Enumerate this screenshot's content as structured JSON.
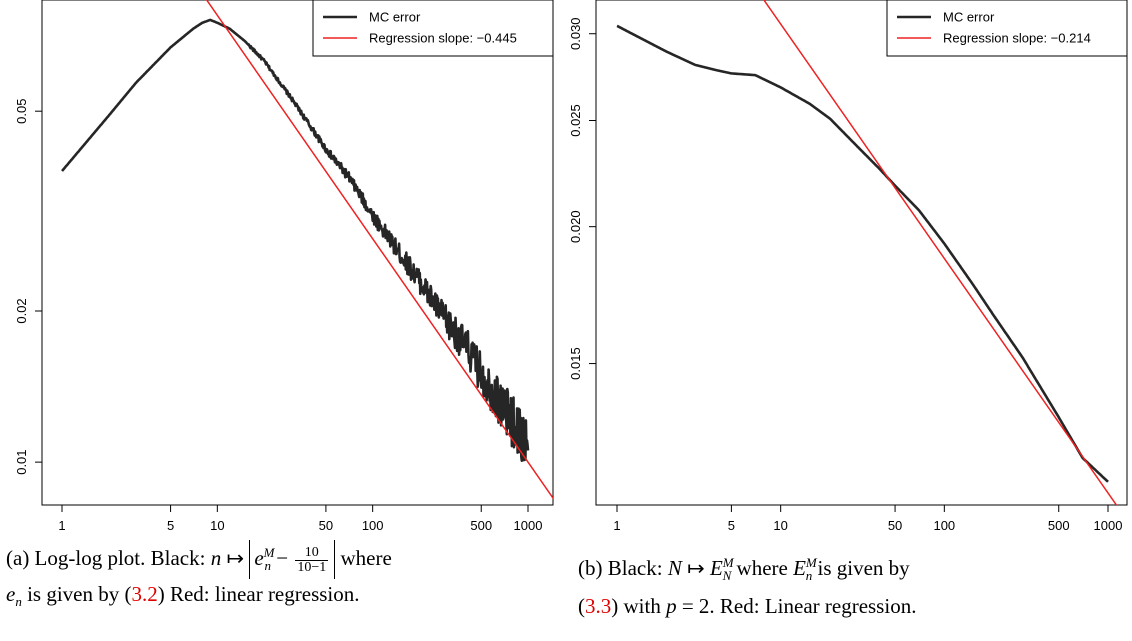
{
  "chart_data": [
    {
      "type": "line",
      "x_scale": "log",
      "y_scale": "log",
      "xlim": [
        1,
        1000
      ],
      "ylim": [
        0.0088,
        0.081
      ],
      "x_ticks": [
        1,
        5,
        10,
        50,
        100,
        500,
        1000
      ],
      "x_tick_labels": [
        "1",
        "5",
        "10",
        "50",
        "100",
        "500",
        "1000"
      ],
      "y_ticks": [
        0.01,
        0.02,
        0.05
      ],
      "y_tick_labels": [
        "0.01",
        "0.02",
        "0.05"
      ],
      "legend_position": "top-right",
      "series": [
        {
          "name": "MC error",
          "color": "#262626",
          "x": [
            1,
            2,
            3,
            5,
            7,
            8,
            9,
            10,
            12,
            15,
            20,
            30,
            50,
            70,
            100,
            150,
            200,
            300,
            400,
            500,
            700,
            1000
          ],
          "y": [
            0.038,
            0.049,
            0.057,
            0.067,
            0.073,
            0.075,
            0.076,
            0.075,
            0.073,
            0.069,
            0.063,
            0.053,
            0.042,
            0.037,
            0.031,
            0.026,
            0.023,
            0.019,
            0.017,
            0.015,
            0.0128,
            0.0108
          ],
          "noise_from_x": 100,
          "noise_amplitude_log10": [
            0.01,
            0.055
          ]
        },
        {
          "name": "Regression slope: −0.445",
          "color": "#ee2222",
          "slope": -0.445,
          "intercept_log10": -0.665
        }
      ],
      "caption": {
        "prefix": "(a) Log-log plot. Black: ",
        "var_n": "n",
        "mapsto": " ↦ ",
        "e_base": "e",
        "e_sup": "M",
        "e_sub": "n",
        "minus": " − ",
        "frac_num": "10",
        "frac_den": "10−1",
        "where": " where",
        "e2_base": "e",
        "e2_sub": "n",
        "middle": " is given by (",
        "ref": "3.2",
        "suffix": ") Red: linear regression."
      }
    },
    {
      "type": "line",
      "x_scale": "log",
      "y_scale": "log",
      "xlim": [
        1,
        1000
      ],
      "ylim": [
        0.0115,
        0.0318
      ],
      "x_ticks": [
        1,
        5,
        10,
        50,
        100,
        500,
        1000
      ],
      "x_tick_labels": [
        "1",
        "5",
        "10",
        "50",
        "100",
        "500",
        "1000"
      ],
      "y_ticks": [
        0.015,
        0.02,
        0.025,
        0.03
      ],
      "y_tick_labels": [
        "0.015",
        "0.020",
        "0.025",
        "0.030"
      ],
      "legend_position": "top-right",
      "series": [
        {
          "name": "MC error",
          "color": "#262626",
          "x": [
            1,
            2,
            3,
            4,
            5,
            7,
            10,
            15,
            20,
            30,
            40,
            50,
            70,
            100,
            150,
            200,
            300,
            500,
            700,
            1000
          ],
          "y": [
            0.0305,
            0.0289,
            0.0281,
            0.0278,
            0.0276,
            0.0275,
            0.0268,
            0.0259,
            0.0251,
            0.0236,
            0.0226,
            0.0218,
            0.0207,
            0.0193,
            0.0177,
            0.0166,
            0.0152,
            0.0134,
            0.0123,
            0.0117
          ]
        },
        {
          "name": "Regression slope: −0.214",
          "color": "#ee2222",
          "slope": -0.214,
          "intercept_log10": -1.3
        }
      ],
      "caption": {
        "prefix": "(b) Black: ",
        "var_N": "N",
        "mapsto": " ↦ ",
        "E_base": "E",
        "E_sup": "M",
        "E_sub": "N",
        "where": " where ",
        "E2_base": "E",
        "E2_sup": "M",
        "E2_sub": "n",
        "middle": " is given by",
        "open": "(",
        "ref": "3.3",
        "suffix1": ") with ",
        "p": "p",
        "suffix2": " = 2. Red: Linear regression."
      }
    }
  ]
}
